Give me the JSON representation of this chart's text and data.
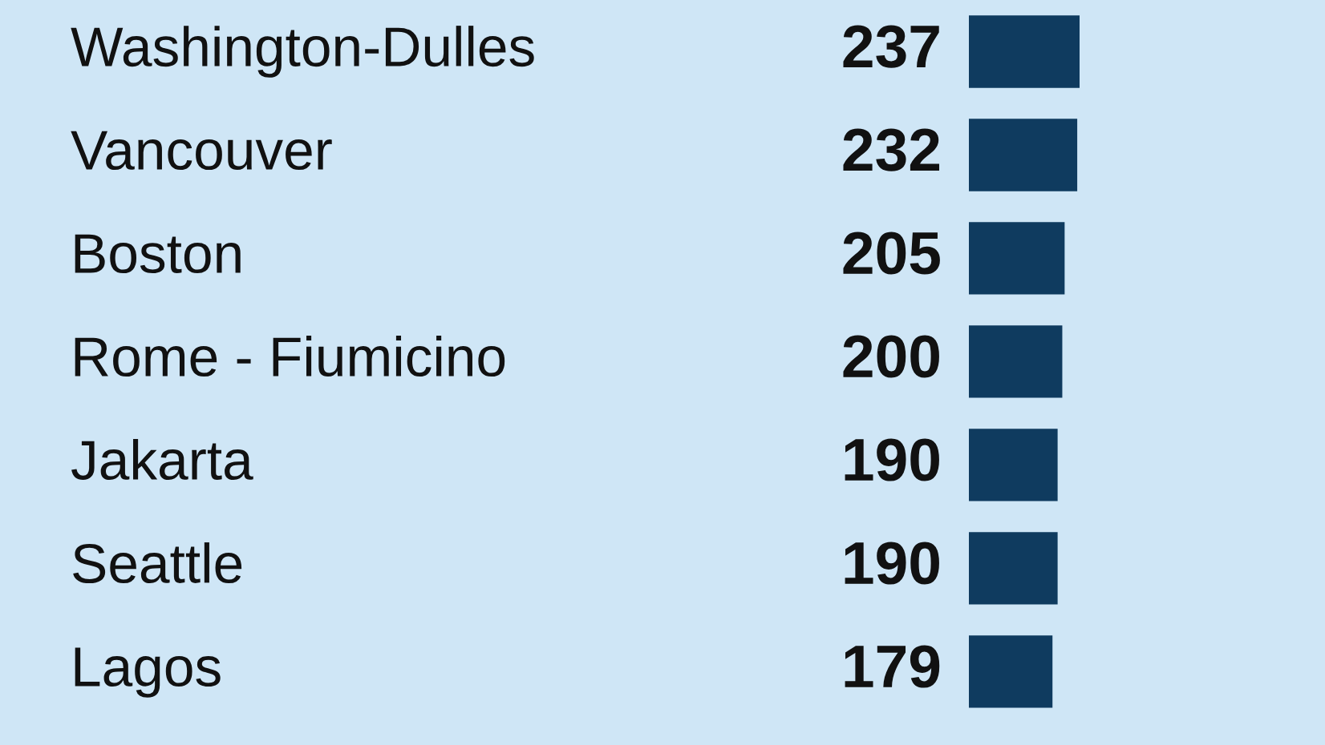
{
  "chart_data": {
    "type": "bar",
    "orientation": "horizontal",
    "categories": [
      "Washington-Dulles",
      "Vancouver",
      "Boston",
      "Rome - Fiumicino",
      "Jakarta",
      "Seattle",
      "Lagos"
    ],
    "values": [
      237,
      232,
      205,
      200,
      190,
      190,
      179
    ],
    "color": "#0f3b5f",
    "data_labels": true
  }
}
